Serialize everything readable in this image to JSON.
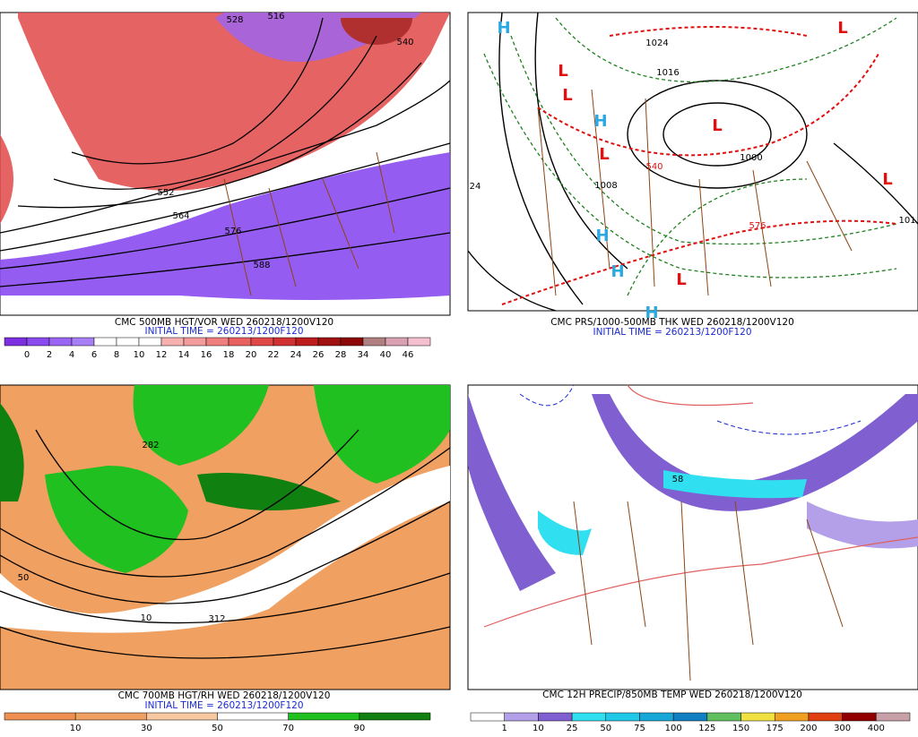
{
  "panels": [
    {
      "caption": "CMC 500MB HGT/VOR WED 260218/1200V120",
      "initial_time": "INITIAL TIME = 260213/1200F120",
      "colorbar": {
        "labels": [
          0,
          2,
          4,
          6,
          8,
          10,
          12,
          14,
          16,
          18,
          20,
          22,
          24,
          26,
          28,
          34,
          40,
          46
        ],
        "colors": [
          "#7b2fe0",
          "#8a4af0",
          "#9a64f4",
          "#a77ef6",
          "#ffffff",
          "#ffffff",
          "#ffffff",
          "#f7b0b0",
          "#f39a9a",
          "#ef7e7e",
          "#e86060",
          "#e04848",
          "#d03030",
          "#bc1c1c",
          "#a01010",
          "#8c0808",
          "#b08080",
          "#d8a0b0",
          "#f4c0d0"
        ]
      },
      "labels": [
        {
          "text": "528",
          "color": "#000000"
        },
        {
          "text": "516",
          "color": "#000000"
        },
        {
          "text": "540",
          "color": "#000000"
        },
        {
          "text": "552",
          "color": "#000000"
        },
        {
          "text": "564",
          "color": "#000000"
        },
        {
          "text": "576",
          "color": "#000000"
        },
        {
          "text": "588",
          "color": "#000000"
        }
      ]
    },
    {
      "caption": "CMC PRS/1000-500MB THK WED 260218/1200V120",
      "initial_time": "INITIAL TIME = 260213/1200F120",
      "labels": [
        {
          "text": "H",
          "color": "#2aa8e0"
        },
        {
          "text": "L",
          "color": "#e01010"
        },
        {
          "text": "L",
          "color": "#e01010"
        },
        {
          "text": "H",
          "color": "#2aa8e0"
        },
        {
          "text": "L",
          "color": "#e01010"
        },
        {
          "text": "L",
          "color": "#e01010"
        },
        {
          "text": "H",
          "color": "#2aa8e0"
        },
        {
          "text": "H",
          "color": "#2aa8e0"
        },
        {
          "text": "L",
          "color": "#e01010"
        },
        {
          "text": "H",
          "color": "#2aa8e0"
        },
        {
          "text": "L",
          "color": "#e01010"
        },
        {
          "text": "L",
          "color": "#e01010"
        },
        {
          "text": "1024",
          "color": "#000000"
        },
        {
          "text": "1016",
          "color": "#000000"
        },
        {
          "text": "1000",
          "color": "#000000"
        },
        {
          "text": "1008",
          "color": "#000000"
        },
        {
          "text": "540",
          "color": "#e01010"
        },
        {
          "text": "576",
          "color": "#e01010"
        },
        {
          "text": "24",
          "color": "#000000"
        },
        {
          "text": "101",
          "color": "#000000"
        }
      ]
    },
    {
      "caption": "CMC 700MB HGT/RH WED 260218/1200V120",
      "initial_time": "INITIAL TIME = 260213/1200F120",
      "colorbar": {
        "labels": [
          10,
          30,
          50,
          70,
          90
        ],
        "colors": [
          "#f09050",
          "#f0a060",
          "#f8c8a0",
          "#ffffff",
          "#20c020",
          "#108010"
        ]
      },
      "labels": [
        {
          "text": "282",
          "color": "#000000"
        },
        {
          "text": "312",
          "color": "#000000"
        },
        {
          "text": "50",
          "color": "#000000"
        },
        {
          "text": "10",
          "color": "#000000"
        }
      ]
    },
    {
      "caption": "CMC 12H PRECIP/850MB TEMP WED 260218/1200V120",
      "initial_time": null,
      "colorbar": {
        "labels": [
          1,
          10,
          25,
          50,
          75,
          100,
          125,
          150,
          175,
          200,
          300,
          400
        ],
        "colors": [
          "#ffffff",
          "#b4a0e8",
          "#8060d0",
          "#30e0f0",
          "#20c8e8",
          "#18a8d8",
          "#1080c0",
          "#60c060",
          "#f0e040",
          "#f0a020",
          "#e04010",
          "#900000",
          "#c8a0a8"
        ]
      },
      "labels": [
        {
          "text": "58",
          "color": "#000000"
        }
      ]
    }
  ]
}
